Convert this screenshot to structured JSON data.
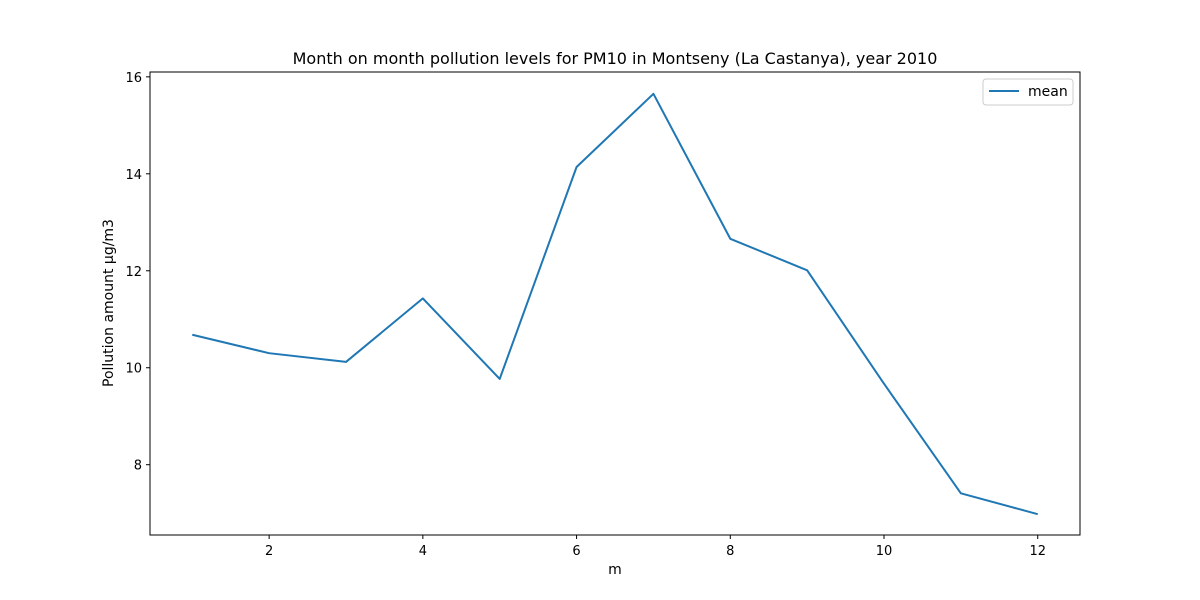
{
  "chart_data": {
    "type": "line",
    "title": "Month on month pollution levels for PM10 in Montseny (La Castanya), year 2010",
    "xlabel": "m",
    "ylabel": "Pollution amount µg/m3",
    "x": [
      1,
      2,
      3,
      4,
      5,
      6,
      7,
      8,
      9,
      10,
      11,
      12
    ],
    "series": [
      {
        "name": "mean",
        "color": "#1f77b4",
        "values": [
          10.68,
          10.3,
          10.12,
          11.43,
          9.77,
          14.14,
          15.65,
          12.66,
          12.01,
          9.67,
          7.41,
          6.98
        ]
      }
    ],
    "xlim": [
      0.45,
      12.55
    ],
    "ylim": [
      6.55,
      16.1
    ],
    "xticks": [
      2,
      4,
      6,
      8,
      10,
      12
    ],
    "yticks": [
      8,
      10,
      12,
      14,
      16
    ],
    "grid": false,
    "legend_position": "top-right"
  }
}
